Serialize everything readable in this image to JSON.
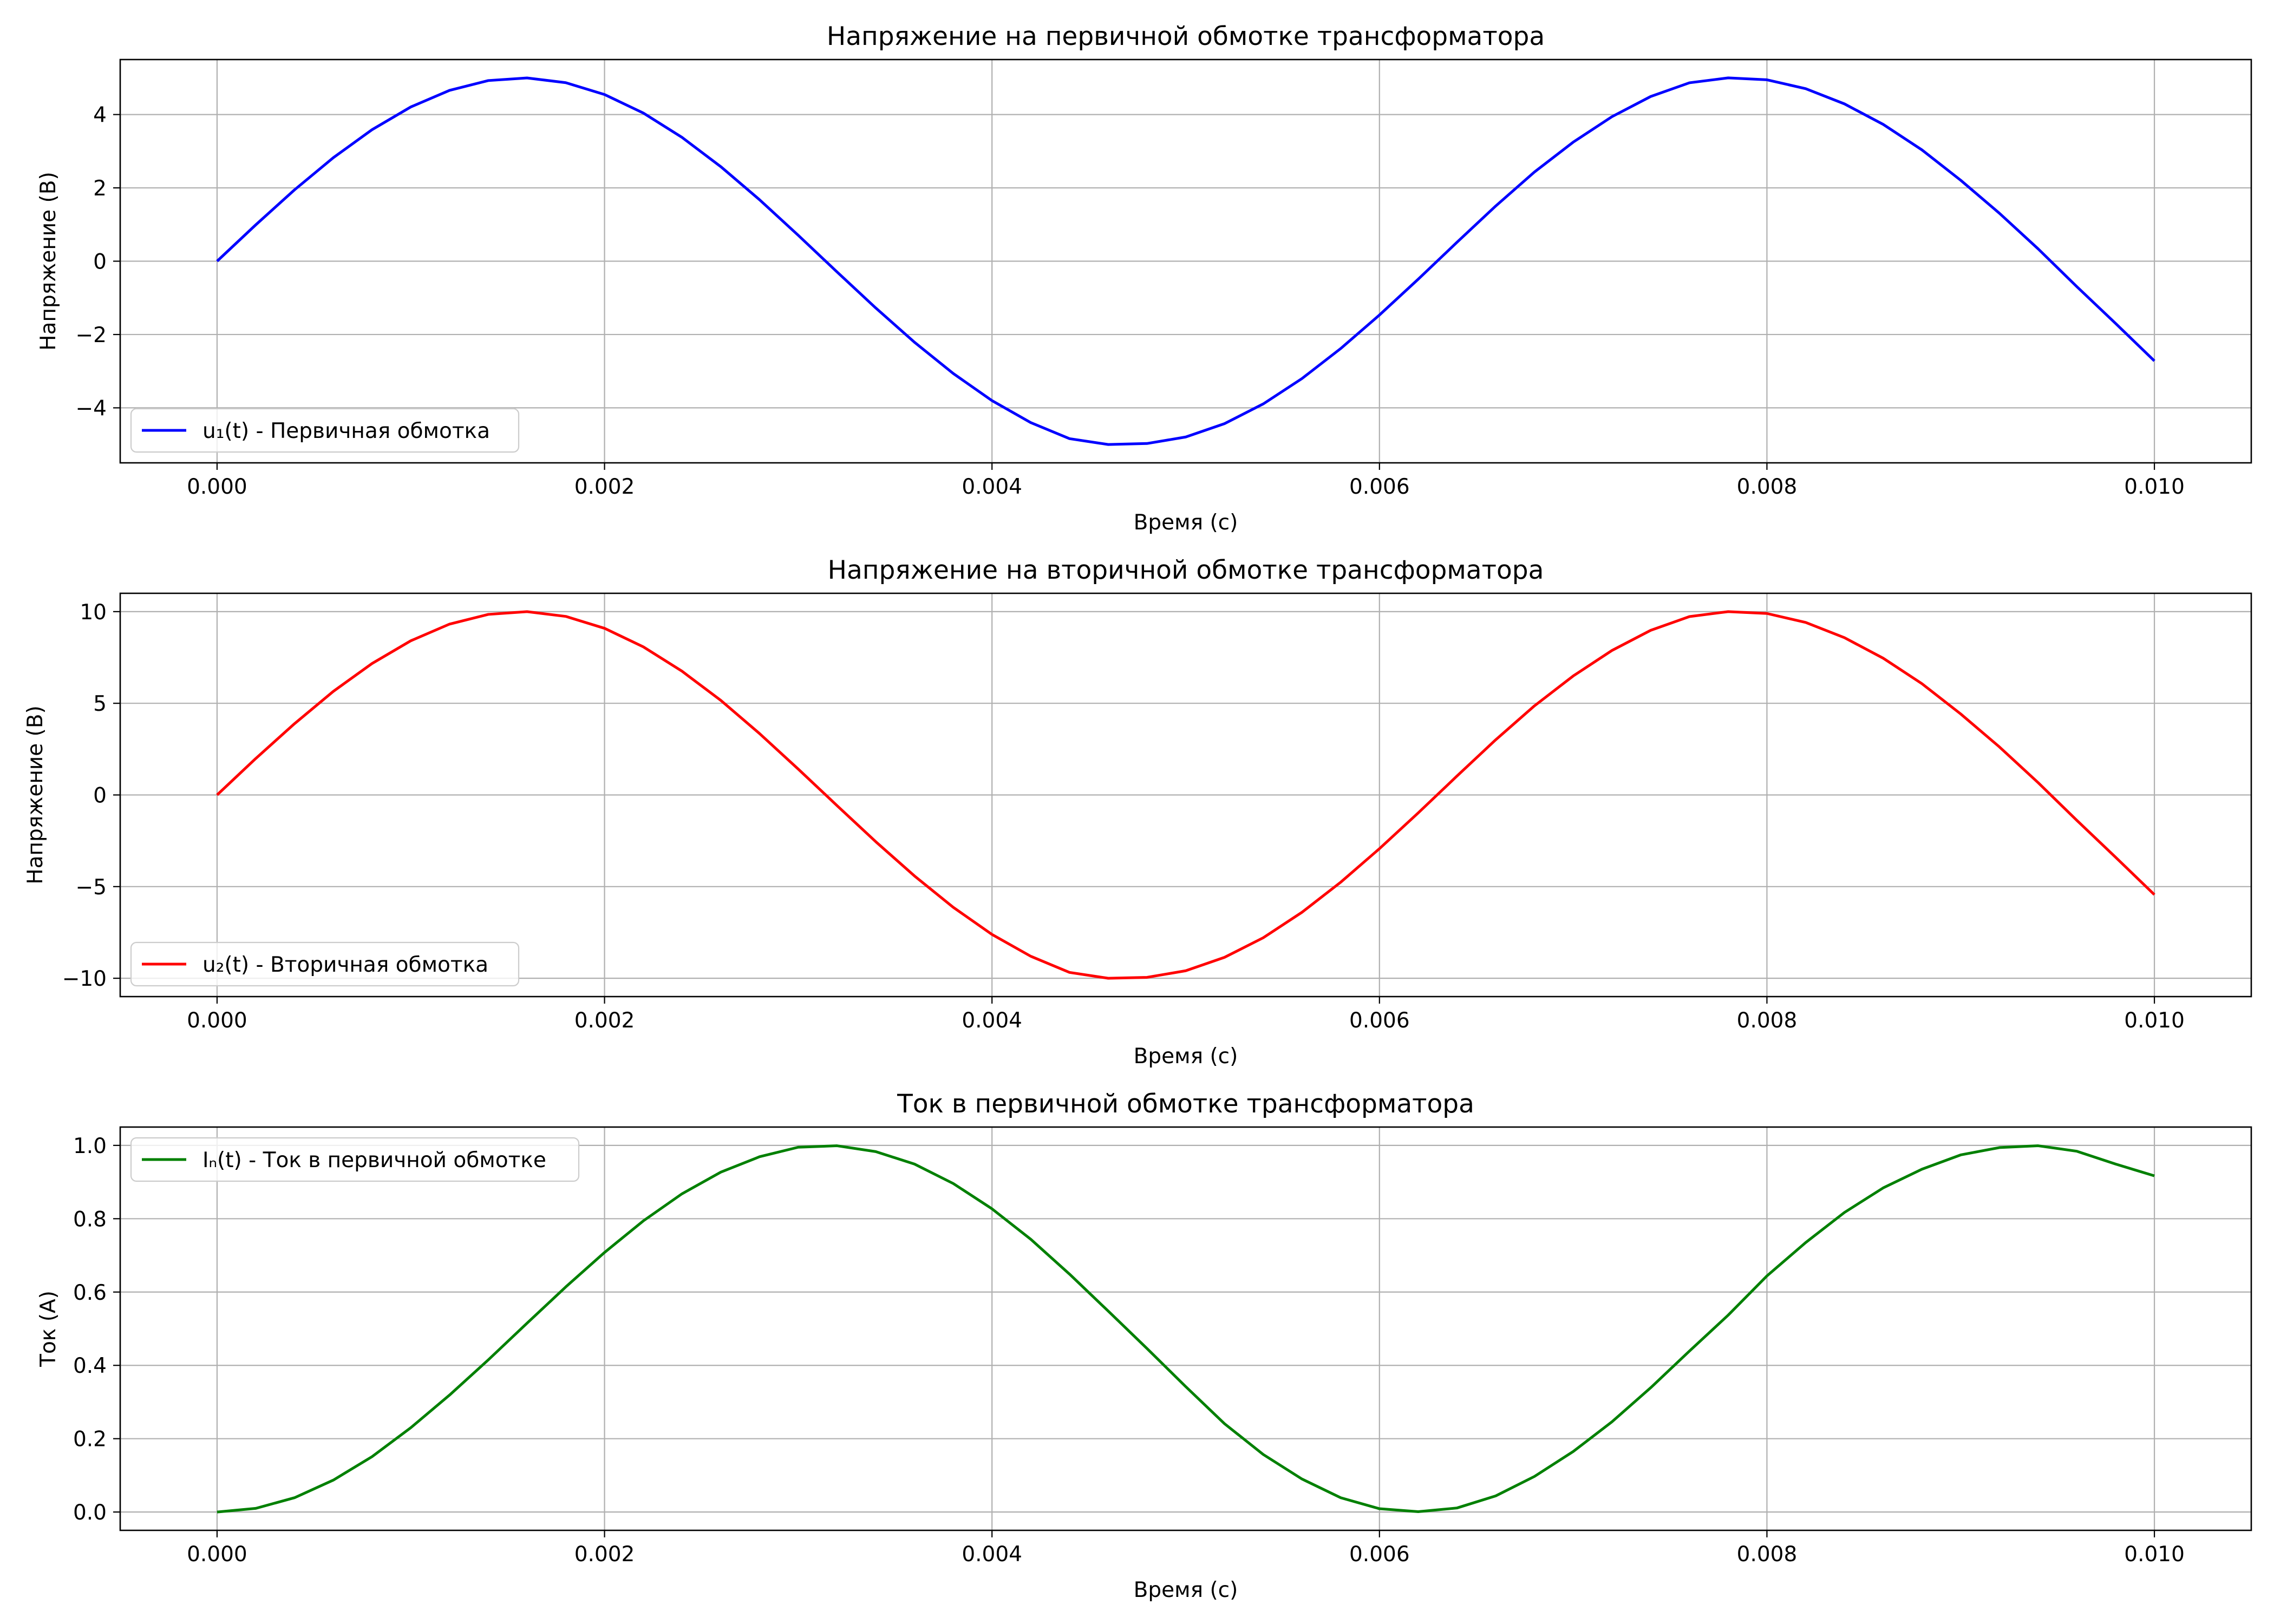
{
  "chart_data": [
    {
      "type": "line",
      "title": "Напряжение на первичной обмотке трансформатора",
      "xlabel": "Время (с)",
      "ylabel": "Напряжение (В)",
      "xlim": [
        -0.0005,
        0.0105
      ],
      "ylim": [
        -5.5,
        5.5
      ],
      "xticks": [
        0.0,
        0.002,
        0.004,
        0.006,
        0.008,
        0.01
      ],
      "xtick_labels": [
        "0.000",
        "0.002",
        "0.004",
        "0.006",
        "0.008",
        "0.010"
      ],
      "yticks": [
        -4,
        -2,
        0,
        2,
        4
      ],
      "ytick_labels": [
        "−4",
        "−2",
        "0",
        "2",
        "4"
      ],
      "grid": true,
      "legend_position": "lower-left",
      "series": [
        {
          "name": "u₁(t) - Первичная обмотка",
          "color": "#0000ff",
          "x": [
            0.0,
            0.0002,
            0.0004,
            0.0006,
            0.0008,
            0.001,
            0.0012,
            0.0014,
            0.0016,
            0.0018,
            0.002,
            0.0022,
            0.0024,
            0.0026,
            0.0028,
            0.003,
            0.0032,
            0.0034,
            0.0036,
            0.0038,
            0.004,
            0.0042,
            0.0044,
            0.0046,
            0.0048,
            0.005,
            0.0052,
            0.0054,
            0.0056,
            0.0058,
            0.006,
            0.0062,
            0.0064,
            0.0066,
            0.0068,
            0.007,
            0.0072,
            0.0074,
            0.0076,
            0.0078,
            0.008,
            0.0082,
            0.0084,
            0.0086,
            0.0088,
            0.009,
            0.0092,
            0.0094,
            0.0096,
            0.0098,
            0.01
          ],
          "y": [
            0.0,
            0.993,
            1.947,
            2.823,
            3.587,
            4.207,
            4.66,
            4.927,
            4.998,
            4.869,
            4.546,
            4.042,
            3.377,
            2.579,
            1.677,
            0.706,
            -0.292,
            -1.276,
            -2.211,
            -3.063,
            -3.803,
            -4.402,
            -4.84,
            -5.0,
            -4.973,
            -4.795,
            -4.431,
            -3.893,
            -3.201,
            -2.382,
            -1.467,
            -0.491,
            0.515,
            1.505,
            2.432,
            3.247,
            3.941,
            4.492,
            4.866,
            5.0,
            4.948,
            4.705,
            4.291,
            3.732,
            3.036,
            2.208,
            1.308,
            0.336,
            -0.696,
            -1.699,
            -2.72
          ]
        }
      ]
    },
    {
      "type": "line",
      "title": "Напряжение на вторичной обмотке трансформатора",
      "xlabel": "Время (с)",
      "ylabel": "Напряжение (В)",
      "xlim": [
        -0.0005,
        0.0105
      ],
      "ylim": [
        -11,
        11
      ],
      "xticks": [
        0.0,
        0.002,
        0.004,
        0.006,
        0.008,
        0.01
      ],
      "xtick_labels": [
        "0.000",
        "0.002",
        "0.004",
        "0.006",
        "0.008",
        "0.010"
      ],
      "yticks": [
        -10,
        -5,
        0,
        5,
        10
      ],
      "ytick_labels": [
        "−10",
        "−5",
        "0",
        "5",
        "10"
      ],
      "grid": true,
      "legend_position": "lower-left",
      "series": [
        {
          "name": "u₂(t) - Вторичная обмотка",
          "color": "#ff0000",
          "x": [
            0.0,
            0.0002,
            0.0004,
            0.0006,
            0.0008,
            0.001,
            0.0012,
            0.0014,
            0.0016,
            0.0018,
            0.002,
            0.0022,
            0.0024,
            0.0026,
            0.0028,
            0.003,
            0.0032,
            0.0034,
            0.0036,
            0.0038,
            0.004,
            0.0042,
            0.0044,
            0.0046,
            0.0048,
            0.005,
            0.0052,
            0.0054,
            0.0056,
            0.0058,
            0.006,
            0.0062,
            0.0064,
            0.0066,
            0.0068,
            0.007,
            0.0072,
            0.0074,
            0.0076,
            0.0078,
            0.008,
            0.0082,
            0.0084,
            0.0086,
            0.0088,
            0.009,
            0.0092,
            0.0094,
            0.0096,
            0.0098,
            0.01
          ],
          "y": [
            0.0,
            1.99,
            3.89,
            5.65,
            7.17,
            8.41,
            9.32,
            9.85,
            10.0,
            9.74,
            9.09,
            8.08,
            6.75,
            5.16,
            3.35,
            1.41,
            -0.58,
            -2.55,
            -4.42,
            -6.13,
            -7.61,
            -8.8,
            -9.68,
            -10.0,
            -9.95,
            -9.59,
            -8.86,
            -7.79,
            -6.4,
            -4.76,
            -2.93,
            -0.98,
            1.03,
            3.01,
            4.86,
            6.49,
            7.88,
            8.98,
            9.73,
            10.0,
            9.9,
            9.41,
            8.58,
            7.46,
            6.07,
            4.42,
            2.62,
            0.67,
            -1.39,
            -3.4,
            -5.44
          ]
        }
      ]
    },
    {
      "type": "line",
      "title": "Ток в первичной обмотке трансформатора",
      "xlabel": "Время (с)",
      "ylabel": "Ток (А)",
      "xlim": [
        -0.0005,
        0.0105
      ],
      "ylim": [
        -0.05,
        1.05
      ],
      "xticks": [
        0.0,
        0.002,
        0.004,
        0.006,
        0.008,
        0.01
      ],
      "xtick_labels": [
        "0.000",
        "0.002",
        "0.004",
        "0.006",
        "0.008",
        "0.010"
      ],
      "yticks": [
        0.0,
        0.2,
        0.4,
        0.6,
        0.8,
        1.0
      ],
      "ytick_labels": [
        "0.0",
        "0.2",
        "0.4",
        "0.6",
        "0.8",
        "1.0"
      ],
      "grid": true,
      "legend_position": "upper-left",
      "series": [
        {
          "name": "Iₙ(t) - Ток в первичной обмотке",
          "color": "#008000",
          "x": [
            0.0,
            0.0002,
            0.0004,
            0.0006,
            0.0008,
            0.001,
            0.0012,
            0.0014,
            0.0016,
            0.0018,
            0.002,
            0.0022,
            0.0024,
            0.0026,
            0.0028,
            0.003,
            0.0032,
            0.0034,
            0.0036,
            0.0038,
            0.004,
            0.0042,
            0.0044,
            0.0046,
            0.0048,
            0.005,
            0.0052,
            0.0054,
            0.0056,
            0.0058,
            0.006,
            0.0062,
            0.0064,
            0.0066,
            0.0068,
            0.007,
            0.0072,
            0.0074,
            0.0076,
            0.0078,
            0.008,
            0.0082,
            0.0084,
            0.0086,
            0.0088,
            0.009,
            0.0092,
            0.0094,
            0.0096,
            0.0098,
            0.01
          ],
          "y": [
            0.0,
            0.01,
            0.039,
            0.087,
            0.151,
            0.23,
            0.319,
            0.415,
            0.515,
            0.614,
            0.708,
            0.794,
            0.868,
            0.927,
            0.969,
            0.995,
            0.999,
            0.983,
            0.949,
            0.896,
            0.827,
            0.744,
            0.649,
            0.548,
            0.446,
            0.342,
            0.241,
            0.157,
            0.09,
            0.039,
            0.009,
            0.001,
            0.011,
            0.044,
            0.097,
            0.165,
            0.246,
            0.339,
            0.439,
            0.537,
            0.644,
            0.735,
            0.817,
            0.884,
            0.935,
            0.974,
            0.994,
            0.999,
            0.984,
            0.949,
            0.917
          ]
        }
      ]
    }
  ]
}
